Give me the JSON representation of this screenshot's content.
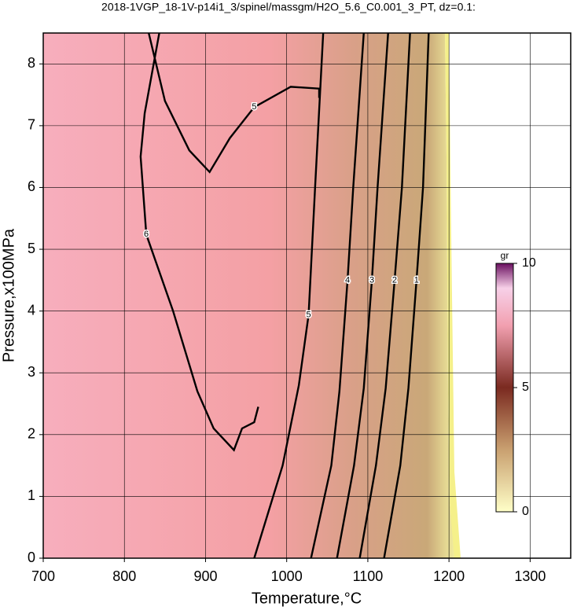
{
  "chart_data": {
    "type": "contour",
    "title": "2018-1VGP_18-1V-p14i1_3/spinel/massgm/H2O_5.6_C0.001_3_PT, dz=0.1:",
    "xlabel": "Temperature,°C",
    "ylabel": "Pressure,x100MPa",
    "xlim": [
      700,
      1350
    ],
    "ylim": [
      0,
      8.5
    ],
    "xticks": [
      700,
      800,
      900,
      1000,
      1100,
      1200,
      1300
    ],
    "yticks": [
      0,
      1,
      2,
      3,
      4,
      5,
      6,
      7,
      8
    ],
    "grid": true,
    "contours": [
      {
        "level": 1,
        "x": [
          1120,
          1140,
          1150,
          1160,
          1168,
          1175
        ],
        "y": [
          0,
          1.5,
          2.75,
          4.5,
          6.0,
          8.5
        ]
      },
      {
        "level": 2,
        "x": [
          1090,
          1110,
          1122,
          1133,
          1142,
          1152
        ],
        "y": [
          0,
          1.5,
          2.75,
          4.5,
          6.0,
          8.5
        ]
      },
      {
        "level": 3,
        "x": [
          1062,
          1083,
          1095,
          1105,
          1112,
          1125
        ],
        "y": [
          0,
          1.5,
          2.75,
          4.5,
          6.0,
          8.5
        ]
      },
      {
        "level": 4,
        "x": [
          1030,
          1055,
          1065,
          1075,
          1082,
          1095
        ],
        "y": [
          0,
          1.5,
          2.7,
          4.5,
          6.0,
          8.5
        ]
      },
      {
        "level": 5,
        "x": [
          960,
          995,
          1015,
          1027,
          1035,
          1045
        ],
        "y": [
          0,
          1.5,
          2.8,
          3.94,
          6.0,
          8.5
        ]
      },
      {
        "level": 5,
        "x": [
          1040,
          1040,
          1005,
          960,
          930,
          905,
          880,
          850,
          830
        ],
        "y": [
          7.45,
          7.6,
          7.63,
          7.3,
          6.8,
          6.25,
          6.6,
          7.4,
          8.5
        ]
      },
      {
        "level": 6,
        "x": [
          843,
          825,
          820,
          827,
          860,
          890,
          910,
          935,
          945,
          960,
          965
        ],
        "y": [
          8.5,
          7.2,
          6.5,
          5.24,
          4.0,
          2.7,
          2.1,
          1.75,
          2.1,
          2.2,
          2.45
        ]
      }
    ],
    "colorbar": {
      "label": "gr",
      "lim": [
        0,
        10
      ],
      "ticks": [
        0,
        5,
        10
      ]
    }
  }
}
